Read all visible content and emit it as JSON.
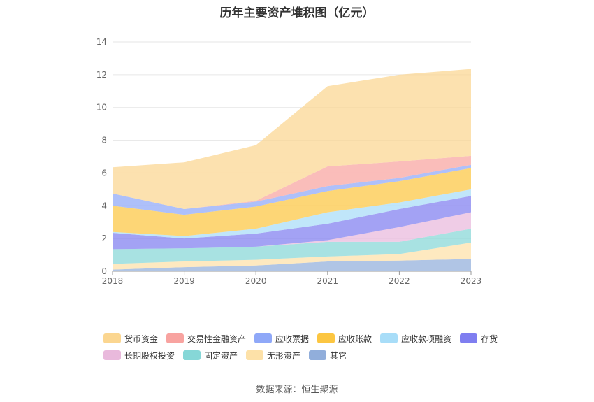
{
  "title": "历年主要资产堆积图（亿元）",
  "source": "数据来源：恒生聚源",
  "colors": {
    "货币资金": "#fbd690",
    "交易性金融资产": "#f8a3a0",
    "应收票据": "#8fa8f8",
    "应收账款": "#fcc641",
    "应收款项融资": "#a8ddf8",
    "存货": "#7f7ef0",
    "长期股权投资": "#e9b9dc",
    "固定资产": "#86d7d7",
    "无形资产": "#fde1a8",
    "其它": "#91aedb"
  },
  "chart_data": {
    "type": "area",
    "stacked": true,
    "title": "历年主要资产堆积图（亿元）",
    "categories": [
      "2018",
      "2019",
      "2020",
      "2021",
      "2022",
      "2023"
    ],
    "ylim": [
      0,
      14
    ],
    "yticks": [
      0,
      2,
      4,
      6,
      8,
      10,
      12,
      14
    ],
    "grid": true,
    "legend_position": "bottom",
    "stack_order": [
      "其它",
      "无形资产",
      "固定资产",
      "长期股权投资",
      "存货",
      "应收款项融资",
      "应收账款",
      "应收票据",
      "交易性金融资产",
      "货币资金"
    ],
    "legend_order": [
      "货币资金",
      "交易性金融资产",
      "应收票据",
      "应收账款",
      "应收款项融资",
      "存货",
      "长期股权投资",
      "固定资产",
      "无形资产",
      "其它"
    ],
    "series": [
      {
        "name": "其它",
        "values": [
          0.1,
          0.25,
          0.35,
          0.6,
          0.65,
          0.75
        ]
      },
      {
        "name": "无形资产",
        "values": [
          0.35,
          0.35,
          0.35,
          0.3,
          0.4,
          1.0
        ]
      },
      {
        "name": "固定资产",
        "values": [
          0.9,
          0.8,
          0.8,
          0.9,
          0.75,
          0.85
        ]
      },
      {
        "name": "长期股权投资",
        "values": [
          0.0,
          0.0,
          0.0,
          0.1,
          0.9,
          1.0
        ]
      },
      {
        "name": "存货",
        "values": [
          1.0,
          0.6,
          0.8,
          1.0,
          1.1,
          1.0
        ]
      },
      {
        "name": "应收款项融资",
        "values": [
          0.05,
          0.15,
          0.3,
          0.7,
          0.4,
          0.4
        ]
      },
      {
        "name": "应收账款",
        "values": [
          1.6,
          1.3,
          1.35,
          1.3,
          1.3,
          1.3
        ]
      },
      {
        "name": "应收票据",
        "values": [
          0.75,
          0.35,
          0.3,
          0.3,
          0.2,
          0.2
        ]
      },
      {
        "name": "交易性金融资产",
        "values": [
          0.0,
          0.0,
          0.05,
          1.2,
          1.0,
          0.55
        ]
      },
      {
        "name": "货币资金",
        "values": [
          1.6,
          2.85,
          3.4,
          4.9,
          5.3,
          5.3
        ]
      }
    ]
  }
}
